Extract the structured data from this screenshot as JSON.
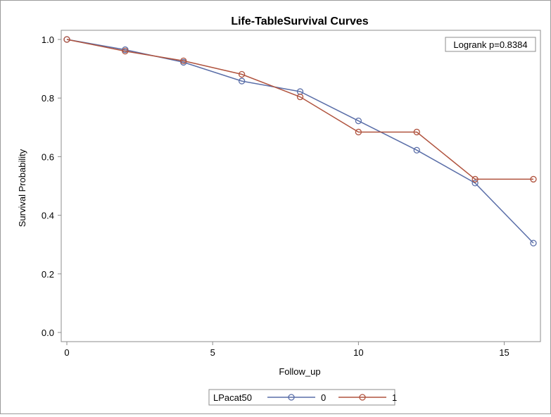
{
  "chart_data": {
    "type": "line",
    "title": "Life-TableSurvival Curves",
    "xlabel": "Follow_up",
    "ylabel": "Survival Probability",
    "xlim": [
      0,
      16
    ],
    "ylim": [
      0,
      1
    ],
    "xticks": [
      "0",
      "5",
      "10",
      "15"
    ],
    "xtick_values": [
      0,
      5,
      10,
      15
    ],
    "yticks": [
      "0.0",
      "0.2",
      "0.4",
      "0.6",
      "0.8",
      "1.0"
    ],
    "ytick_values": [
      0,
      0.2,
      0.4,
      0.6,
      0.8,
      1.0
    ],
    "grid": false,
    "annotation": "Logrank p=0.8384",
    "legend": {
      "title": "LPacat50",
      "placement": "bottom"
    },
    "series": [
      {
        "name": "0",
        "color": "#5a6ea8",
        "x": [
          0,
          2,
          4,
          6,
          8,
          10,
          12,
          14,
          16
        ],
        "y": [
          1.0,
          0.965,
          0.922,
          0.858,
          0.822,
          0.722,
          0.622,
          0.51,
          0.305
        ]
      },
      {
        "name": "1",
        "color": "#b0533e",
        "x": [
          0,
          2,
          4,
          6,
          8,
          10,
          12,
          14,
          16
        ],
        "y": [
          1.0,
          0.96,
          0.927,
          0.881,
          0.804,
          0.684,
          0.684,
          0.523,
          0.523
        ]
      }
    ]
  }
}
